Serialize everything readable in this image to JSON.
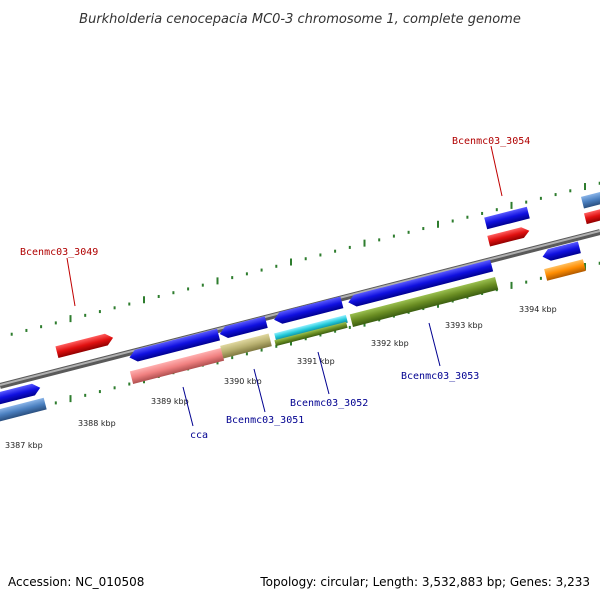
{
  "title": "Burkholderia cenocepacia MC0-3 chromosome 1, complete genome",
  "accession": "Accession: NC_010508",
  "topology": "Topology: circular; Length: 3,532,883 bp; Genes: 3,233",
  "ticks": [
    "3387 kbp",
    "3388 kbp",
    "3389 kbp",
    "3390 kbp",
    "3391 kbp",
    "3392 kbp",
    "3393 kbp",
    "3394 kbp"
  ],
  "labels": {
    "l3049": "Bcenmc03_3049",
    "l3054": "Bcenmc03_3054",
    "l3051": "Bcenmc03_3051",
    "l3052": "Bcenmc03_3052",
    "l3053": "Bcenmc03_3053",
    "cca": "cca"
  },
  "colors": {
    "backbone": "#8a8a8a",
    "gene_blue": "#1010e0",
    "gene_red": "#e01010",
    "gene_steel": "#4a7fbf",
    "gene_salmon": "#f08080",
    "gene_khaki": "#b8b070",
    "gene_cyan": "#20c8d8",
    "gene_olive": "#6b8e23",
    "gene_orange": "#ff8c00",
    "tick_green": "#2e8b2e",
    "label_red": "#b00000",
    "label_blue": "#000090"
  }
}
